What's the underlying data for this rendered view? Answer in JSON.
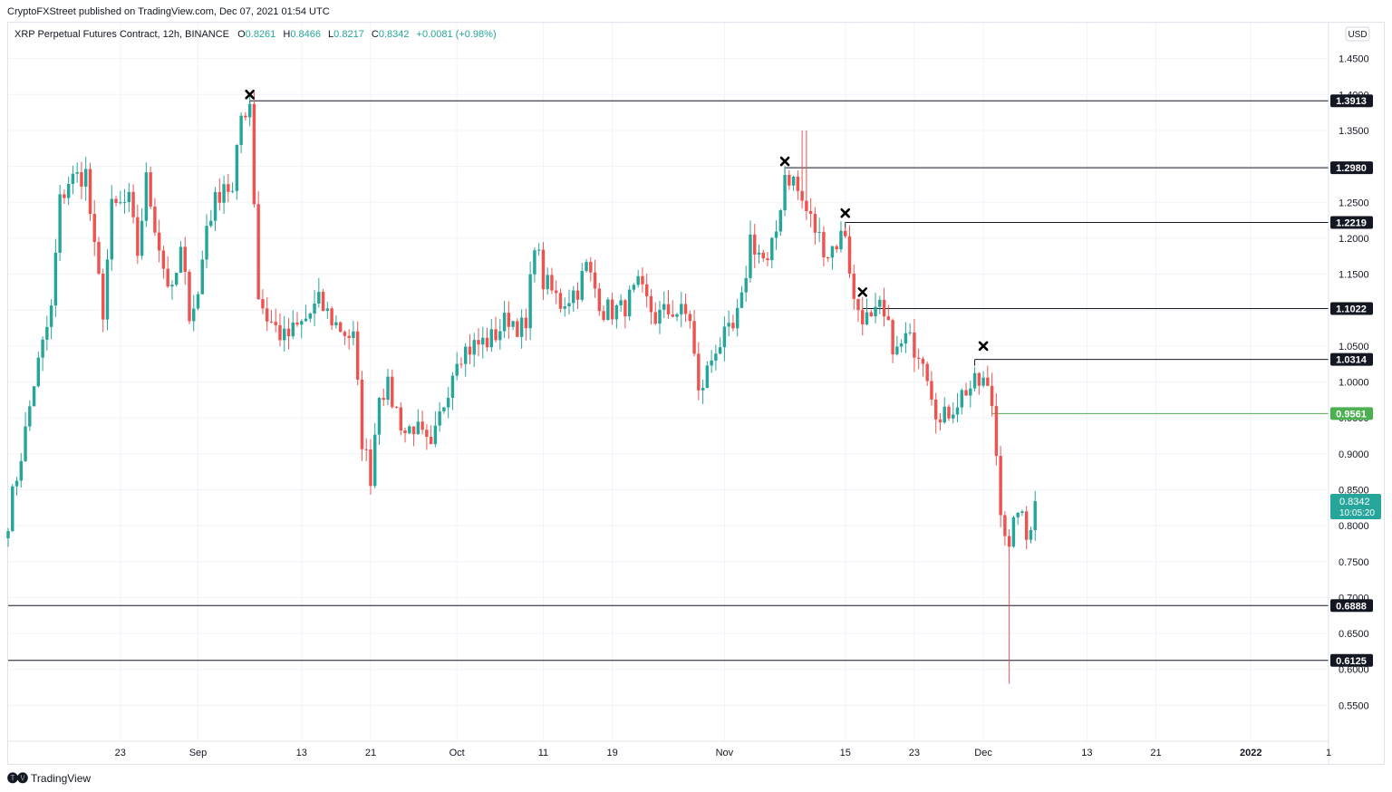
{
  "header": {
    "publisher": "CryptoFXStreet published on TradingView.com, Dec 07, 2021 01:54 UTC"
  },
  "legend": {
    "symbol": "XRP Perpetual Futures Contract, 12h, BINANCE",
    "o_label": "O",
    "o_value": "0.8261",
    "h_label": "H",
    "h_value": "0.8466",
    "l_label": "L",
    "l_value": "0.8217",
    "c_label": "C",
    "c_value": "0.8342",
    "change": "+0.0081 (+0.98%)"
  },
  "footer": {
    "brand": "TradingView"
  },
  "colors": {
    "up": "#26a69a",
    "down": "#ef5350",
    "level": "#131722",
    "support_green": "#4caf50",
    "grid": "#f0f3fa"
  },
  "chart_data": {
    "type": "candlestick",
    "currency": "USD",
    "ylim": [
      0.5,
      1.5
    ],
    "y_ticks": [
      "1.4500",
      "1.4000",
      "1.3500",
      "1.3000",
      "1.2500",
      "1.2000",
      "1.1500",
      "1.1000",
      "1.0500",
      "1.0000",
      "0.9500",
      "0.9000",
      "0.8500",
      "0.8000",
      "0.7500",
      "0.7000",
      "0.6500",
      "0.6000",
      "0.5500"
    ],
    "x_ticks": [
      {
        "label": "23",
        "date": "2021-08-23"
      },
      {
        "label": "Sep",
        "date": "2021-09-01"
      },
      {
        "label": "13",
        "date": "2021-09-13"
      },
      {
        "label": "21",
        "date": "2021-09-21"
      },
      {
        "label": "Oct",
        "date": "2021-10-01"
      },
      {
        "label": "11",
        "date": "2021-10-11"
      },
      {
        "label": "19",
        "date": "2021-10-19"
      },
      {
        "label": "Nov",
        "date": "2021-11-01"
      },
      {
        "label": "15",
        "date": "2021-11-15"
      },
      {
        "label": "23",
        "date": "2021-11-23"
      },
      {
        "label": "Dec",
        "date": "2021-12-01"
      },
      {
        "label": "13",
        "date": "2021-12-13"
      },
      {
        "label": "21",
        "date": "2021-12-21"
      },
      {
        "label": "2022",
        "date": "2022-01-01"
      },
      {
        "label": "1",
        "date": "2022-01-10"
      }
    ],
    "xlim": [
      "2021-08-10",
      "2022-01-10"
    ],
    "levels": [
      {
        "value": 1.3913,
        "label": "1.3913",
        "from": "2021-09-07",
        "kind": "resistance"
      },
      {
        "value": 1.298,
        "label": "1.2980",
        "from": "2021-11-08",
        "kind": "resistance"
      },
      {
        "value": 1.2219,
        "label": "1.2219",
        "from": "2021-11-15",
        "kind": "resistance"
      },
      {
        "value": 1.1022,
        "label": "1.1022",
        "from": "2021-11-17",
        "kind": "resistance"
      },
      {
        "value": 1.0314,
        "label": "1.0314",
        "from": "2021-11-30",
        "kind": "resistance"
      },
      {
        "value": 0.9561,
        "label": "0.9561",
        "from": "2021-12-02",
        "kind": "green"
      },
      {
        "value": 0.6888,
        "label": "0.6888",
        "from": "2021-08-10",
        "kind": "support"
      },
      {
        "value": 0.6125,
        "label": "0.6125",
        "from": "2021-08-10",
        "kind": "support"
      }
    ],
    "markers": [
      {
        "date": "2021-09-07",
        "value": 1.4
      },
      {
        "date": "2021-11-08",
        "value": 1.307
      },
      {
        "date": "2021-11-15",
        "value": 1.235
      },
      {
        "date": "2021-11-17",
        "value": 1.125
      },
      {
        "date": "2021-12-01",
        "value": 1.05
      }
    ],
    "last_price": {
      "value": 0.8342,
      "label": "0.8342",
      "countdown": "10:05:20"
    },
    "anchors": [
      [
        "2021-08-10",
        0.81
      ],
      [
        "2021-08-12",
        0.93
      ],
      [
        "2021-08-13",
        1.0
      ],
      [
        "2021-08-15",
        1.1
      ],
      [
        "2021-08-16",
        1.25
      ],
      [
        "2021-08-17",
        1.28
      ],
      [
        "2021-08-19",
        1.29
      ],
      [
        "2021-08-20",
        1.18
      ],
      [
        "2021-08-21",
        1.1
      ],
      [
        "2021-08-22",
        1.24
      ],
      [
        "2021-08-24",
        1.25
      ],
      [
        "2021-08-25",
        1.18
      ],
      [
        "2021-08-26",
        1.28
      ],
      [
        "2021-08-28",
        1.16
      ],
      [
        "2021-08-29",
        1.12
      ],
      [
        "2021-08-30",
        1.18
      ],
      [
        "2021-08-31",
        1.1
      ],
      [
        "2021-09-01",
        1.12
      ],
      [
        "2021-09-02",
        1.22
      ],
      [
        "2021-09-04",
        1.28
      ],
      [
        "2021-09-05",
        1.26
      ],
      [
        "2021-09-06",
        1.37
      ],
      [
        "2021-09-07",
        1.39
      ],
      [
        "2021-09-08",
        1.12
      ],
      [
        "2021-09-09",
        1.09
      ],
      [
        "2021-09-11",
        1.06
      ],
      [
        "2021-09-13",
        1.08
      ],
      [
        "2021-09-15",
        1.11
      ],
      [
        "2021-09-17",
        1.08
      ],
      [
        "2021-09-19",
        1.06
      ],
      [
        "2021-09-20",
        0.92
      ],
      [
        "2021-09-21",
        0.87
      ],
      [
        "2021-09-22",
        0.99
      ],
      [
        "2021-09-23",
        0.99
      ],
      [
        "2021-09-25",
        0.93
      ],
      [
        "2021-09-26",
        0.94
      ],
      [
        "2021-09-28",
        0.9
      ],
      [
        "2021-09-29",
        0.95
      ],
      [
        "2021-10-01",
        1.04
      ],
      [
        "2021-10-03",
        1.05
      ],
      [
        "2021-10-05",
        1.06
      ],
      [
        "2021-10-07",
        1.09
      ],
      [
        "2021-10-09",
        1.07
      ],
      [
        "2021-10-10",
        1.2
      ],
      [
        "2021-10-11",
        1.14
      ],
      [
        "2021-10-13",
        1.11
      ],
      [
        "2021-10-15",
        1.13
      ],
      [
        "2021-10-16",
        1.16
      ],
      [
        "2021-10-18",
        1.1
      ],
      [
        "2021-10-20",
        1.1
      ],
      [
        "2021-10-22",
        1.13
      ],
      [
        "2021-10-24",
        1.09
      ],
      [
        "2021-10-26",
        1.1
      ],
      [
        "2021-10-28",
        1.09
      ],
      [
        "2021-10-29",
        0.98
      ],
      [
        "2021-10-31",
        1.05
      ],
      [
        "2021-11-02",
        1.07
      ],
      [
        "2021-11-03",
        1.11
      ],
      [
        "2021-11-04",
        1.2
      ],
      [
        "2021-11-06",
        1.16
      ],
      [
        "2021-11-07",
        1.21
      ],
      [
        "2021-11-08",
        1.29
      ],
      [
        "2021-11-09",
        1.28
      ],
      [
        "2021-11-10",
        1.25
      ],
      [
        "2021-11-12",
        1.2
      ],
      [
        "2021-11-13",
        1.18
      ],
      [
        "2021-11-15",
        1.21
      ],
      [
        "2021-11-16",
        1.11
      ],
      [
        "2021-11-18",
        1.08
      ],
      [
        "2021-11-19",
        1.1
      ],
      [
        "2021-11-21",
        1.04
      ],
      [
        "2021-11-22",
        1.06
      ],
      [
        "2021-11-24",
        1.04
      ],
      [
        "2021-11-26",
        0.94
      ],
      [
        "2021-11-27",
        0.96
      ],
      [
        "2021-11-29",
        0.99
      ],
      [
        "2021-12-01",
        1.0
      ],
      [
        "2021-12-02",
        0.97
      ],
      [
        "2021-12-03",
        0.83
      ],
      [
        "2021-12-04",
        0.76
      ],
      [
        "2021-12-05",
        0.83
      ],
      [
        "2021-12-06",
        0.78
      ],
      [
        "2021-12-07",
        0.8342
      ]
    ]
  }
}
